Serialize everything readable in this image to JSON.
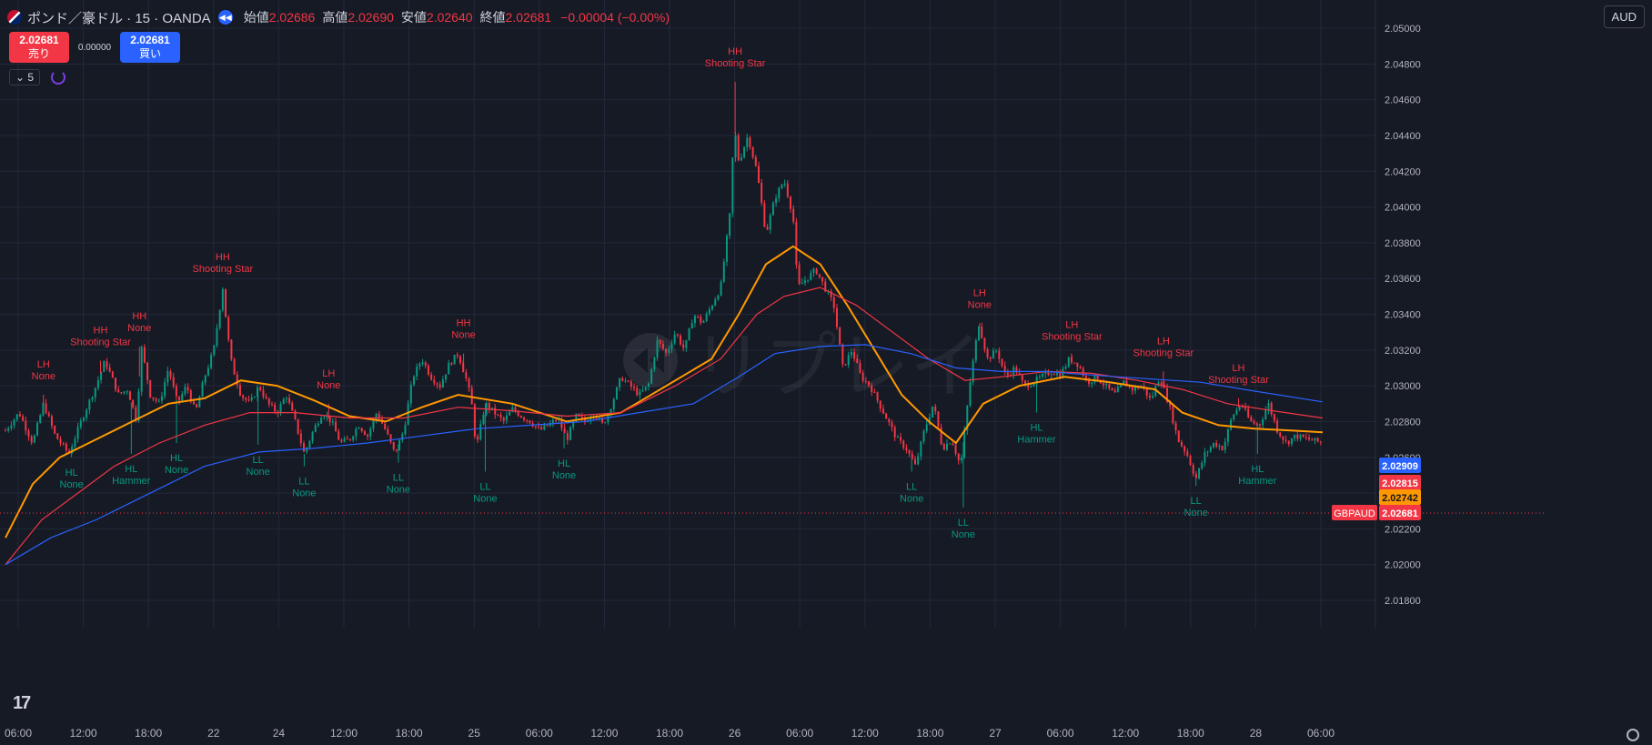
{
  "header": {
    "symbol": "ポンド／豪ドル · 15 · OANDA",
    "open_label": "始値",
    "open": "2.02686",
    "high_label": "高値",
    "high": "2.02690",
    "low_label": "安値",
    "low": "2.02640",
    "close_label": "終値",
    "close": "2.02681",
    "change": "−0.00004 (−0.00%)"
  },
  "trade": {
    "sell_price": "2.02681",
    "sell_label": "売り",
    "spread": "0.00000",
    "buy_price": "2.02681",
    "buy_label": "買い"
  },
  "indicator": {
    "count": "5"
  },
  "currency": "AUD",
  "watermark": "リプレイ",
  "chart_data": {
    "type": "candlestick",
    "symbol": "GBPAUD",
    "y_ticks": [
      "2.05000",
      "2.04800",
      "2.04600",
      "2.04400",
      "2.04200",
      "2.04000",
      "2.03800",
      "2.03600",
      "2.03400",
      "2.03200",
      "2.03000",
      "2.02800",
      "2.02600",
      "2.02400",
      "2.02200",
      "2.02000",
      "2.01800"
    ],
    "ylim": [
      2.017,
      2.05
    ],
    "x_ticks": [
      "06:00",
      "12:00",
      "18:00",
      "22",
      "24",
      "12:00",
      "18:00",
      "25",
      "06:00",
      "12:00",
      "18:00",
      "26",
      "06:00",
      "12:00",
      "18:00",
      "27",
      "06:00",
      "12:00",
      "18:00",
      "28",
      "06:00"
    ],
    "price_labels": [
      {
        "value": "2.02909",
        "color": "#2962ff"
      },
      {
        "value": "2.02815",
        "color": "#f23645"
      },
      {
        "value": "2.02742",
        "color": "#ff9800"
      },
      {
        "value": "2.02681",
        "color": "#f23645",
        "tag": "GBPAUD"
      }
    ],
    "price_path": [
      [
        0,
        2.0275
      ],
      [
        15,
        2.0285
      ],
      [
        30,
        2.0268
      ],
      [
        42,
        2.029
      ],
      [
        55,
        2.0272
      ],
      [
        70,
        2.0262
      ],
      [
        85,
        2.0282
      ],
      [
        100,
        2.03
      ],
      [
        110,
        2.0314
      ],
      [
        125,
        2.0295
      ],
      [
        135,
        2.0298
      ],
      [
        145,
        2.028
      ],
      [
        150,
        2.0322
      ],
      [
        160,
        2.0295
      ],
      [
        170,
        2.029
      ],
      [
        180,
        2.031
      ],
      [
        190,
        2.029
      ],
      [
        200,
        2.03
      ],
      [
        210,
        2.0285
      ],
      [
        220,
        2.0305
      ],
      [
        230,
        2.032
      ],
      [
        240,
        2.0355
      ],
      [
        245,
        2.033
      ],
      [
        250,
        2.0312
      ],
      [
        260,
        2.0295
      ],
      [
        270,
        2.029
      ],
      [
        280,
        2.03
      ],
      [
        290,
        2.029
      ],
      [
        300,
        2.0285
      ],
      [
        310,
        2.0295
      ],
      [
        320,
        2.028
      ],
      [
        330,
        2.0262
      ],
      [
        340,
        2.0275
      ],
      [
        350,
        2.0285
      ],
      [
        360,
        2.028
      ],
      [
        370,
        2.0268
      ],
      [
        380,
        2.027
      ],
      [
        390,
        2.0278
      ],
      [
        400,
        2.0272
      ],
      [
        410,
        2.0285
      ],
      [
        420,
        2.0275
      ],
      [
        430,
        2.0262
      ],
      [
        440,
        2.0275
      ],
      [
        450,
        2.0305
      ],
      [
        460,
        2.0315
      ],
      [
        470,
        2.0305
      ],
      [
        480,
        2.03
      ],
      [
        490,
        2.0312
      ],
      [
        500,
        2.0318
      ],
      [
        510,
        2.0302
      ],
      [
        515,
        2.029
      ],
      [
        520,
        2.0265
      ],
      [
        530,
        2.029
      ],
      [
        540,
        2.0285
      ],
      [
        550,
        2.028
      ],
      [
        560,
        2.0287
      ],
      [
        570,
        2.0283
      ],
      [
        580,
        2.028
      ],
      [
        590,
        2.0275
      ],
      [
        600,
        2.0278
      ],
      [
        610,
        2.0282
      ],
      [
        620,
        2.027
      ],
      [
        630,
        2.0283
      ],
      [
        640,
        2.028
      ],
      [
        650,
        2.0285
      ],
      [
        660,
        2.0278
      ],
      [
        670,
        2.029
      ],
      [
        680,
        2.0305
      ],
      [
        690,
        2.03
      ],
      [
        700,
        2.0295
      ],
      [
        710,
        2.03
      ],
      [
        720,
        2.0325
      ],
      [
        730,
        2.0318
      ],
      [
        740,
        2.033
      ],
      [
        750,
        2.032
      ],
      [
        760,
        2.034
      ],
      [
        770,
        2.0335
      ],
      [
        780,
        2.0345
      ],
      [
        790,
        2.0355
      ],
      [
        800,
        2.0395
      ],
      [
        805,
        2.0445
      ],
      [
        810,
        2.0425
      ],
      [
        820,
        2.044
      ],
      [
        830,
        2.042
      ],
      [
        840,
        2.0385
      ],
      [
        850,
        2.0405
      ],
      [
        860,
        2.0415
      ],
      [
        870,
        2.0395
      ],
      [
        875,
        2.0355
      ],
      [
        885,
        2.036
      ],
      [
        895,
        2.0365
      ],
      [
        905,
        2.0355
      ],
      [
        915,
        2.0345
      ],
      [
        925,
        2.031
      ],
      [
        935,
        2.032
      ],
      [
        945,
        2.0305
      ],
      [
        955,
        2.03
      ],
      [
        965,
        2.029
      ],
      [
        975,
        2.028
      ],
      [
        985,
        2.027
      ],
      [
        995,
        2.0265
      ],
      [
        1005,
        2.0255
      ],
      [
        1015,
        2.0275
      ],
      [
        1025,
        2.029
      ],
      [
        1035,
        2.0265
      ],
      [
        1045,
        2.027
      ],
      [
        1055,
        2.0255
      ],
      [
        1065,
        2.03
      ],
      [
        1075,
        2.0335
      ],
      [
        1085,
        2.0315
      ],
      [
        1095,
        2.032
      ],
      [
        1105,
        2.0305
      ],
      [
        1115,
        2.031
      ],
      [
        1125,
        2.03
      ],
      [
        1135,
        2.0302
      ],
      [
        1145,
        2.0305
      ],
      [
        1155,
        2.0308
      ],
      [
        1165,
        2.0306
      ],
      [
        1175,
        2.0315
      ],
      [
        1185,
        2.0312
      ],
      [
        1195,
        2.0302
      ],
      [
        1205,
        2.0305
      ],
      [
        1215,
        2.03
      ],
      [
        1225,
        2.0295
      ],
      [
        1235,
        2.0302
      ],
      [
        1245,
        2.0298
      ],
      [
        1255,
        2.03
      ],
      [
        1265,
        2.0292
      ],
      [
        1275,
        2.0305
      ],
      [
        1285,
        2.029
      ],
      [
        1295,
        2.027
      ],
      [
        1305,
        2.0262
      ],
      [
        1315,
        2.0248
      ],
      [
        1325,
        2.0262
      ],
      [
        1335,
        2.0268
      ],
      [
        1345,
        2.0265
      ],
      [
        1355,
        2.0283
      ],
      [
        1365,
        2.029
      ],
      [
        1375,
        2.028
      ],
      [
        1385,
        2.0278
      ],
      [
        1395,
        2.029
      ],
      [
        1405,
        2.0275
      ],
      [
        1415,
        2.0268
      ],
      [
        1425,
        2.0272
      ],
      [
        1440,
        2.027
      ],
      [
        1455,
        2.0268
      ]
    ],
    "ma_series": [
      {
        "color": "#ff9800",
        "points": [
          [
            0,
            2.0215
          ],
          [
            30,
            2.0245
          ],
          [
            60,
            2.026
          ],
          [
            100,
            2.027
          ],
          [
            140,
            2.028
          ],
          [
            180,
            2.029
          ],
          [
            220,
            2.0293
          ],
          [
            260,
            2.0303
          ],
          [
            300,
            2.03
          ],
          [
            340,
            2.0292
          ],
          [
            380,
            2.0283
          ],
          [
            420,
            2.028
          ],
          [
            460,
            2.0288
          ],
          [
            500,
            2.0295
          ],
          [
            560,
            2.029
          ],
          [
            620,
            2.028
          ],
          [
            680,
            2.0285
          ],
          [
            730,
            2.03
          ],
          [
            780,
            2.0315
          ],
          [
            810,
            2.034
          ],
          [
            840,
            2.0368
          ],
          [
            870,
            2.0378
          ],
          [
            900,
            2.0368
          ],
          [
            930,
            2.0345
          ],
          [
            960,
            2.032
          ],
          [
            990,
            2.0295
          ],
          [
            1020,
            2.028
          ],
          [
            1050,
            2.0268
          ],
          [
            1080,
            2.029
          ],
          [
            1120,
            2.03
          ],
          [
            1170,
            2.0305
          ],
          [
            1220,
            2.0302
          ],
          [
            1270,
            2.0298
          ],
          [
            1300,
            2.0285
          ],
          [
            1340,
            2.0278
          ],
          [
            1380,
            2.0276
          ],
          [
            1420,
            2.0275
          ],
          [
            1455,
            2.0274
          ]
        ]
      },
      {
        "color": "#f23645",
        "points": [
          [
            0,
            2.02
          ],
          [
            40,
            2.0225
          ],
          [
            80,
            2.024
          ],
          [
            120,
            2.0255
          ],
          [
            170,
            2.0268
          ],
          [
            220,
            2.0278
          ],
          [
            270,
            2.0285
          ],
          [
            320,
            2.0285
          ],
          [
            380,
            2.0282
          ],
          [
            440,
            2.0282
          ],
          [
            500,
            2.0288
          ],
          [
            560,
            2.0286
          ],
          [
            620,
            2.0283
          ],
          [
            680,
            2.0285
          ],
          [
            740,
            2.03
          ],
          [
            790,
            2.0315
          ],
          [
            830,
            2.034
          ],
          [
            860,
            2.035
          ],
          [
            900,
            2.0355
          ],
          [
            940,
            2.0345
          ],
          [
            980,
            2.033
          ],
          [
            1020,
            2.0315
          ],
          [
            1060,
            2.0303
          ],
          [
            1100,
            2.0305
          ],
          [
            1150,
            2.0308
          ],
          [
            1200,
            2.0307
          ],
          [
            1250,
            2.0303
          ],
          [
            1300,
            2.0298
          ],
          [
            1350,
            2.029
          ],
          [
            1400,
            2.0286
          ],
          [
            1455,
            2.0282
          ]
        ]
      },
      {
        "color": "#2962ff",
        "points": [
          [
            0,
            2.02
          ],
          [
            50,
            2.0215
          ],
          [
            100,
            2.0225
          ],
          [
            160,
            2.024
          ],
          [
            220,
            2.0255
          ],
          [
            280,
            2.0263
          ],
          [
            340,
            2.0265
          ],
          [
            400,
            2.0268
          ],
          [
            460,
            2.0272
          ],
          [
            520,
            2.0276
          ],
          [
            580,
            2.0278
          ],
          [
            640,
            2.028
          ],
          [
            700,
            2.0285
          ],
          [
            760,
            2.029
          ],
          [
            810,
            2.0305
          ],
          [
            850,
            2.0318
          ],
          [
            900,
            2.0322
          ],
          [
            950,
            2.0323
          ],
          [
            1000,
            2.0318
          ],
          [
            1050,
            2.031
          ],
          [
            1100,
            2.0308
          ],
          [
            1150,
            2.0308
          ],
          [
            1200,
            2.0306
          ],
          [
            1260,
            2.0304
          ],
          [
            1320,
            2.0302
          ],
          [
            1380,
            2.0297
          ],
          [
            1455,
            2.0291
          ]
        ]
      }
    ],
    "annotations": [
      {
        "x": 42,
        "top": "LH",
        "bottom": "None",
        "type": "high",
        "price": 2.0295
      },
      {
        "x": 105,
        "top": "HH",
        "bottom": "Shooting Star",
        "type": "high",
        "price": 2.0314
      },
      {
        "x": 148,
        "top": "HH",
        "bottom": "None",
        "type": "high",
        "price": 2.0322
      },
      {
        "x": 240,
        "top": "HH",
        "bottom": "Shooting Star",
        "type": "high",
        "price": 2.0355
      },
      {
        "x": 357,
        "top": "LH",
        "bottom": "None",
        "type": "high",
        "price": 2.029
      },
      {
        "x": 506,
        "top": "HH",
        "bottom": "None",
        "type": "high",
        "price": 2.0318
      },
      {
        "x": 806,
        "top": "HH",
        "bottom": "Shooting Star",
        "type": "high",
        "price": 2.047
      },
      {
        "x": 1076,
        "top": "LH",
        "bottom": "None",
        "type": "high",
        "price": 2.0335
      },
      {
        "x": 1178,
        "top": "LH",
        "bottom": "Shooting Star",
        "type": "high",
        "price": 2.0317
      },
      {
        "x": 1279,
        "top": "LH",
        "bottom": "Shooting Star",
        "type": "high",
        "price": 2.0308
      },
      {
        "x": 1362,
        "top": "LH",
        "bottom": "Shooting Star",
        "type": "high",
        "price": 2.0293
      },
      {
        "x": 73,
        "top": "HL",
        "bottom": "None",
        "type": "low",
        "price": 2.026
      },
      {
        "x": 139,
        "top": "HL",
        "bottom": "Hammer",
        "type": "low",
        "price": 2.0262
      },
      {
        "x": 189,
        "top": "HL",
        "bottom": "None",
        "type": "low",
        "price": 2.0268
      },
      {
        "x": 279,
        "top": "LL",
        "bottom": "None",
        "type": "low",
        "price": 2.0267
      },
      {
        "x": 330,
        "top": "LL",
        "bottom": "None",
        "type": "low",
        "price": 2.0255
      },
      {
        "x": 434,
        "top": "LL",
        "bottom": "None",
        "type": "low",
        "price": 2.0257
      },
      {
        "x": 530,
        "top": "LL",
        "bottom": "None",
        "type": "low",
        "price": 2.0252
      },
      {
        "x": 617,
        "top": "HL",
        "bottom": "None",
        "type": "low",
        "price": 2.0265
      },
      {
        "x": 1001,
        "top": "LL",
        "bottom": "None",
        "type": "low",
        "price": 2.0252
      },
      {
        "x": 1058,
        "top": "LL",
        "bottom": "None",
        "type": "low",
        "price": 2.0232
      },
      {
        "x": 1139,
        "top": "HL",
        "bottom": "Hammer",
        "type": "low",
        "price": 2.0285
      },
      {
        "x": 1315,
        "top": "LL",
        "bottom": "None",
        "type": "low",
        "price": 2.0244
      },
      {
        "x": 1383,
        "top": "HL",
        "bottom": "Hammer",
        "type": "low",
        "price": 2.0262
      }
    ],
    "colors": {
      "up": "#089981",
      "down": "#f23645",
      "grid": "#23283a",
      "text": "#b2b5be",
      "high_label": "#f23645",
      "low_label": "#089981"
    }
  }
}
